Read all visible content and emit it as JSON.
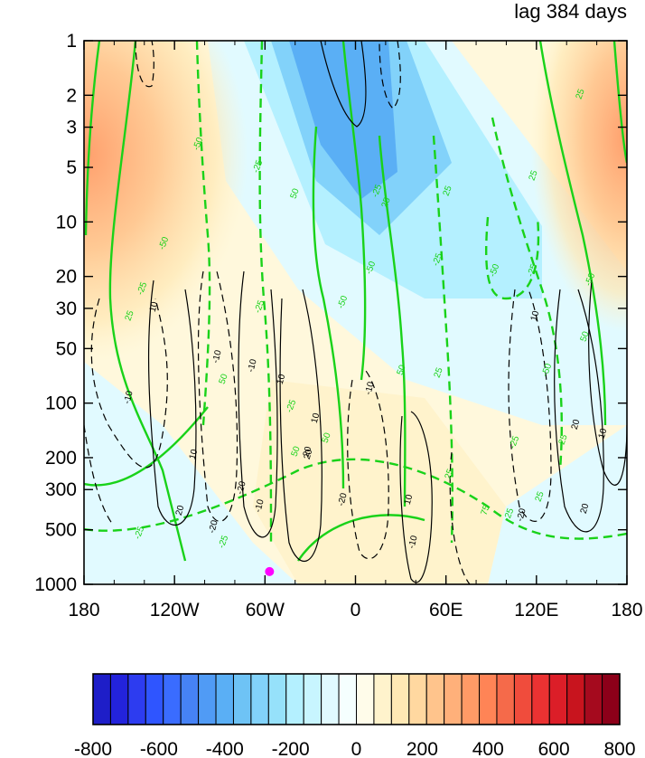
{
  "chart_data": {
    "type": "heatmap",
    "title": "lag 384 days",
    "x_axis": {
      "ticks": [
        -180,
        -120,
        -60,
        0,
        60,
        120,
        180
      ],
      "tick_labels": [
        "180",
        "120W",
        "60W",
        "0",
        "60E",
        "120E",
        "180"
      ],
      "range": [
        -180,
        180
      ]
    },
    "y_axis": {
      "scale": "log",
      "reversed": true,
      "ticks": [
        1,
        2,
        3,
        5,
        10,
        20,
        30,
        50,
        100,
        200,
        300,
        500,
        1000
      ],
      "tick_labels": [
        "1",
        "2",
        "3",
        "5",
        "10",
        "20",
        "30",
        "50",
        "100",
        "200",
        "300",
        "500",
        "1000"
      ],
      "range": [
        1,
        1000
      ]
    },
    "colorbar": {
      "min": -800,
      "max": 800,
      "step": 60,
      "labels": [
        "-800",
        "-600",
        "-400",
        "-200",
        "0",
        "200",
        "400",
        "600",
        "800"
      ],
      "label_values": [
        -800,
        -600,
        -400,
        -200,
        0,
        200,
        400,
        600,
        800
      ],
      "colors": [
        "#1e1ec8",
        "#2323dc",
        "#2d3cf0",
        "#2f55ff",
        "#3a6cff",
        "#4682f5",
        "#509bf5",
        "#5aaff5",
        "#6ec3f5",
        "#82d2fa",
        "#96e1fa",
        "#b4f0ff",
        "#c8f5ff",
        "#e1faff",
        "#f5fffe",
        "#fffcea",
        "#fff3cc",
        "#ffe8b4",
        "#ffd8a0",
        "#ffc48c",
        "#ffb07a",
        "#ff9a66",
        "#ff8456",
        "#f56a4a",
        "#f04c3c",
        "#eb3232",
        "#dc1e28",
        "#c8141e",
        "#a50a1e",
        "#8c0019"
      ]
    },
    "shaded_field": {
      "description_values": [
        {
          "region": "upper-west",
          "lon": -170,
          "p": 3,
          "value": 450
        },
        {
          "region": "upper-east",
          "lon": 170,
          "p": 3,
          "value": 420
        },
        {
          "region": "upper-center",
          "lon": 0,
          "p": 3,
          "value": -380
        },
        {
          "region": "mid-center",
          "lon": 10,
          "p": 15,
          "value": -260
        },
        {
          "region": "lower-west",
          "lon": -160,
          "p": 200,
          "value": -60
        },
        {
          "region": "lower-center",
          "lon": -20,
          "p": 150,
          "value": 60
        }
      ]
    },
    "contour_labels_green": [
      "25",
      "-50",
      "-25",
      "50",
      "-25",
      "25",
      "25",
      "-50",
      "-25",
      "25",
      "-25",
      "50",
      "-25",
      "-50",
      "-50",
      "-25",
      "50",
      "-25",
      "75",
      "50",
      "25",
      "-25",
      "-50",
      "50",
      "25",
      "-25",
      "50",
      "25",
      "25",
      "-50",
      "-25",
      "-25",
      "25",
      "-50"
    ],
    "contour_labels_black": [
      "10",
      "-10",
      "-10",
      "-10",
      "10",
      "-10",
      "10",
      "10",
      "-20",
      "20",
      "20",
      "-20",
      "-20",
      "20",
      "-20",
      "10",
      "10",
      "-10",
      "10",
      "20",
      "-10",
      "20"
    ],
    "marker": {
      "lon": -57,
      "p": 850,
      "color": "#ff00ff"
    },
    "accent_colors": {
      "green_contour": "#19d219",
      "black_contour": "#000000"
    }
  }
}
